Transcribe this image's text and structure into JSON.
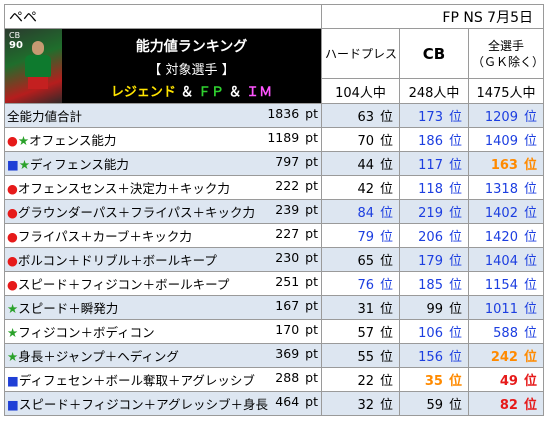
{
  "player_name": "ペペ",
  "date_label": "FP NS 7月5日",
  "card": {
    "position": "CB",
    "rating": "90"
  },
  "header": {
    "title": "能力値ランキング",
    "subtitle": "【 対象選手 】",
    "cat_legend": "レジェンド",
    "cat_fp": "ＦＰ",
    "cat_im": "ＩＭ",
    "cat_amp": "＆"
  },
  "columns": [
    {
      "label": "ハードプレス",
      "count": "104人中"
    },
    {
      "label": "CB",
      "count": "248人中"
    },
    {
      "label": "全選手\n（ＧＫ除く）",
      "count": "1475人中"
    }
  ],
  "unit_pt": "pt",
  "unit_rank": "位",
  "rows": [
    {
      "marks": [],
      "label": "全能力値合計",
      "pts": "1836",
      "r1": "63",
      "r2": "173",
      "r3": "1209"
    },
    {
      "marks": [
        "circle",
        "star"
      ],
      "label": "オフェンス能力",
      "pts": "1189",
      "r1": "70",
      "r2": "186",
      "r3": "1409"
    },
    {
      "marks": [
        "square",
        "star"
      ],
      "label": "ディフェンス能力",
      "pts": "797",
      "r1": "44",
      "r2": "117",
      "r3": "163"
    },
    {
      "marks": [
        "circle"
      ],
      "label": "オフェンスセンス＋決定力＋キック力",
      "pts": "222",
      "r1": "42",
      "r2": "118",
      "r3": "1318"
    },
    {
      "marks": [
        "circle"
      ],
      "label": "グラウンダーパス＋フライパス＋キック力",
      "pts": "239",
      "r1": "84",
      "r2": "219",
      "r3": "1402"
    },
    {
      "marks": [
        "circle"
      ],
      "label": "フライパス＋カーブ＋キック力",
      "pts": "227",
      "r1": "79",
      "r2": "206",
      "r3": "1420"
    },
    {
      "marks": [
        "circle"
      ],
      "label": "ボルコン＋ドリブル＋ボールキープ",
      "pts": "230",
      "r1": "65",
      "r2": "179",
      "r3": "1404"
    },
    {
      "marks": [
        "circle"
      ],
      "label": "スピード＋フィジコン＋ボールキープ",
      "pts": "251",
      "r1": "76",
      "r2": "185",
      "r3": "1154"
    },
    {
      "marks": [
        "star"
      ],
      "label": "スピード＋瞬発力",
      "pts": "167",
      "r1": "31",
      "r2": "99",
      "r3": "1011"
    },
    {
      "marks": [
        "star"
      ],
      "label": "フィジコン＋ボディコン",
      "pts": "170",
      "r1": "57",
      "r2": "106",
      "r3": "588"
    },
    {
      "marks": [
        "star"
      ],
      "label": "身長＋ジャンプ＋ヘディング",
      "pts": "369",
      "r1": "55",
      "r2": "156",
      "r3": "242"
    },
    {
      "marks": [
        "square"
      ],
      "label": "ディフェセン＋ボール奪取＋アグレッシブ",
      "pts": "288",
      "r1": "22",
      "r2": "35",
      "r3": "49"
    },
    {
      "marks": [
        "square"
      ],
      "label": "スピード＋フィジコン＋アグレッシブ＋身長",
      "pts": "464",
      "r1": "32",
      "r2": "59",
      "r3": "82"
    }
  ]
}
